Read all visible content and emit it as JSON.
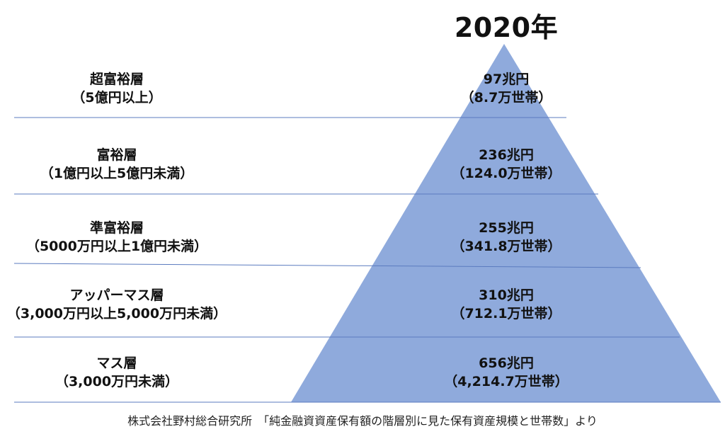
{
  "title": "2020年",
  "tiers": [
    {
      "name": "超富裕層",
      "range": "（5億円以上）",
      "assets": "97兆円",
      "households": "（8.7万世帯）"
    },
    {
      "name": "富裕層",
      "range": "（1億円以上5億円未満）",
      "assets": "236兆円",
      "households": "（124.0万世帯）"
    },
    {
      "name": "準富裕層",
      "range": "（5000万円以上1億円未満）",
      "assets": "255兆円",
      "households": "（341.8万世帯）"
    },
    {
      "name": "アッパーマス層",
      "range": "（3,000万円以上5,000万円未満）",
      "assets": "310兆円",
      "households": "（712.1万世帯）"
    },
    {
      "name": "マス層",
      "range": "（3,000万円未満）",
      "assets": "656兆円",
      "households": "（4,214.7万世帯）"
    }
  ],
  "source": "株式会社野村総合研究所　「純金融資資産保有額の階層別に見た保有資産規模と世帯数」より",
  "colors": {
    "pyramid_fill": "#8faadc",
    "divider": "#5b7bbf"
  }
}
